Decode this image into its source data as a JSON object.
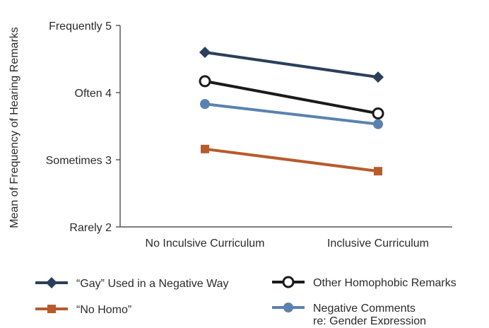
{
  "chart_data": {
    "type": "line",
    "title": "",
    "xlabel": "",
    "ylabel": "Mean of Frequency of Hearing Remarks",
    "ylim": [
      2,
      5
    ],
    "yticks": [
      {
        "value": 5,
        "label": "Frequently 5"
      },
      {
        "value": 4,
        "label": "Often 4"
      },
      {
        "value": 3,
        "label": "Sometimes 3"
      },
      {
        "value": 2,
        "label": "Rarely 2"
      }
    ],
    "categories": [
      "No Inculsive Curriculum",
      "Inclusive Curriculum"
    ],
    "grid": false,
    "legend_position": "bottom",
    "series": [
      {
        "name": "“Gay” Used in a Negative Way",
        "values": [
          4.6,
          4.23
        ],
        "color": "#2b3f5c",
        "marker": "diamond"
      },
      {
        "name": "Other Homophobic Remarks",
        "values": [
          4.17,
          3.69
        ],
        "color": "#1a1a1a",
        "marker": "open-circle"
      },
      {
        "name": "Negative Comments re: Gender Expression",
        "name_lines": [
          "Negative Comments",
          "re: Gender Expression"
        ],
        "values": [
          3.83,
          3.53
        ],
        "color": "#5a82b0",
        "marker": "circle"
      },
      {
        "name": "“No Homo”",
        "values": [
          3.16,
          2.83
        ],
        "color": "#b85a2c",
        "marker": "square"
      }
    ],
    "legend_order": [
      0,
      1,
      3,
      2
    ]
  }
}
